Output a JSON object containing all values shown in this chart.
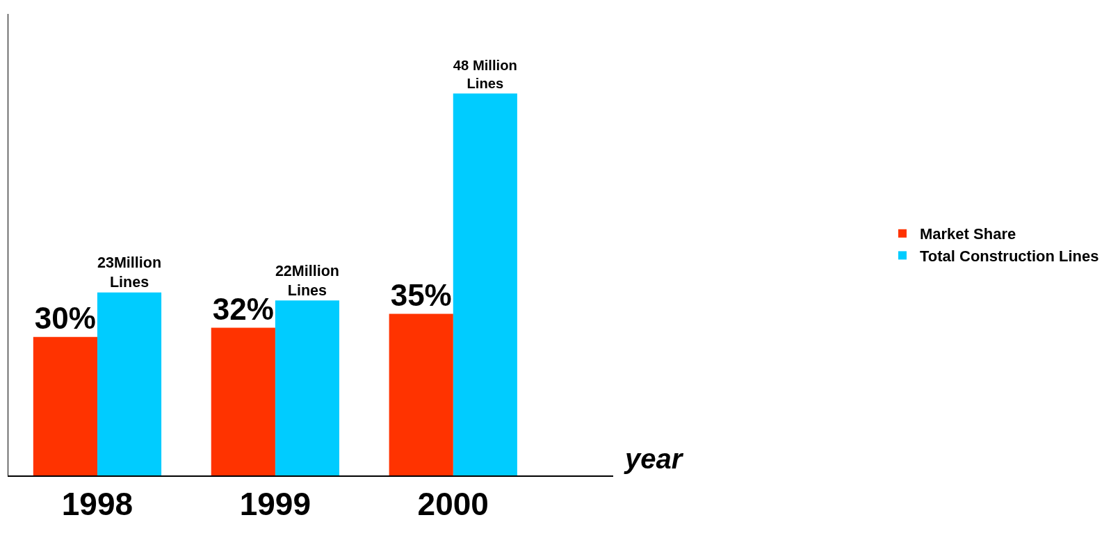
{
  "chart_data": {
    "type": "bar",
    "xlabel": "year",
    "categories": [
      "1998",
      "1999",
      "2000"
    ],
    "series": [
      {
        "name": "Market Share",
        "color": "#ff3300",
        "axis": "y2",
        "values": [
          30,
          32,
          35
        ],
        "value_labels": [
          "30%",
          "32%",
          "35%"
        ]
      },
      {
        "name": "Total Construction Lines",
        "color": "#00ccff",
        "values": [
          23,
          22,
          48
        ],
        "value_labels": [
          "23Million Lines",
          "22Million Lines",
          "48 Million Lines"
        ]
      }
    ],
    "ylim": [
      0,
      58
    ],
    "y2lim": [
      0,
      100
    ],
    "grid": false,
    "legend": "right"
  }
}
